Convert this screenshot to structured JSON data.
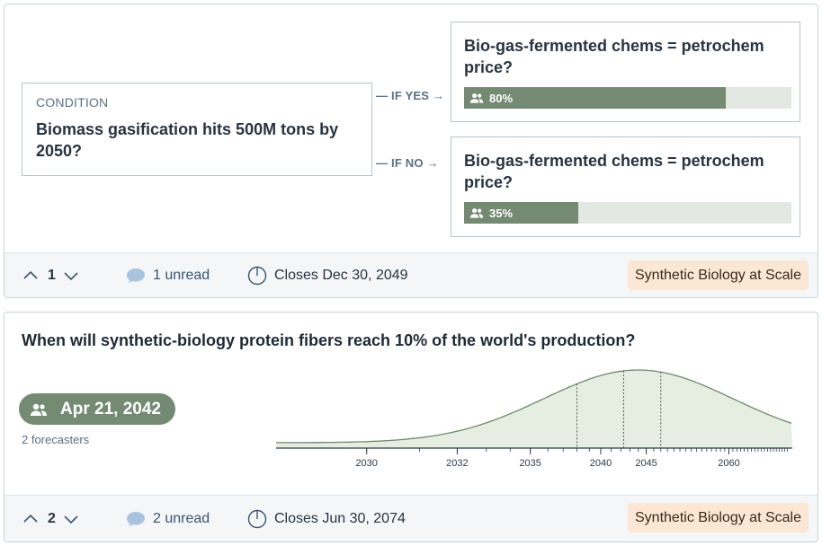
{
  "card1": {
    "condition_label": "CONDITION",
    "condition_question": "Biomass gasification hits 500M tons by 2050?",
    "if_yes_label": "— IF YES →",
    "if_no_label": "— IF NO →",
    "outcome_yes": {
      "question": "Bio-gas-fermented chems = petrochem price?",
      "percent_text": "80%",
      "percent": 80
    },
    "outcome_no": {
      "question": "Bio-gas-fermented chems = petrochem price?",
      "percent_text": "35%",
      "percent": 35
    },
    "footer": {
      "votes": "1",
      "comments": "1 unread",
      "closes": "Closes Dec 30, 2049",
      "tag": "Synthetic Biology at Scale"
    }
  },
  "card2": {
    "question": "When will synthetic-biology protein fibers reach 10% of the world's production?",
    "prediction": "Apr 21, 2042",
    "forecasters": "2 forecasters",
    "footer": {
      "votes": "2",
      "comments": "2 unread",
      "closes": "Closes Jun 30, 2074",
      "tag": "Synthetic Biology at Scale"
    }
  },
  "colors": {
    "accent_green": "#748a72",
    "bar_track": "#e3e8e2",
    "tag_bg": "#fbe7d4",
    "curve_fill": "#e5eee0",
    "curve_line": "#6f8a6c"
  },
  "chart_data": {
    "type": "area",
    "xscale": "log",
    "tick_labels": [
      "2030",
      "2032",
      "2035",
      "2040",
      "2045",
      "2060"
    ],
    "markers": {
      "lower_quartile": 2038,
      "median": 2042.3,
      "upper_quartile": 2047
    },
    "peak": 2044
  }
}
